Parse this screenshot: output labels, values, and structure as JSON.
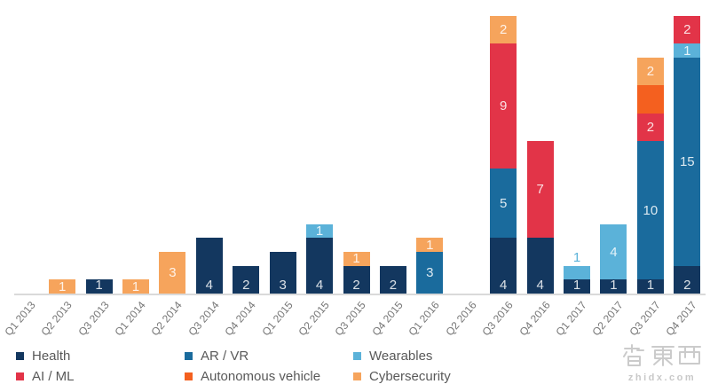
{
  "chart_data": {
    "type": "bar",
    "stacked": true,
    "title": "",
    "xlabel": "",
    "ylabel": "",
    "ylim": [
      0,
      21
    ],
    "grid": false,
    "legend_position": "bottom",
    "categories": [
      "Q1 2013",
      "Q2 2013",
      "Q3 2013",
      "Q1 2014",
      "Q2 2014",
      "Q3 2014",
      "Q4 2014",
      "Q1 2015",
      "Q2 2015",
      "Q3 2015",
      "Q4 2015",
      "Q1 2016",
      "Q2 2016",
      "Q3 2016",
      "Q4 2016",
      "Q1 2017",
      "Q2 2017",
      "Q3 2017",
      "Q4 2017"
    ],
    "series": [
      {
        "name": "Health",
        "color": "#13375F",
        "values": [
          0,
          0,
          1,
          0,
          0,
          4,
          2,
          3,
          4,
          2,
          2,
          0,
          0,
          4,
          4,
          1,
          1,
          1,
          2
        ]
      },
      {
        "name": "AR / VR",
        "color": "#1A6B9D",
        "values": [
          0,
          0,
          0,
          0,
          0,
          0,
          0,
          0,
          0,
          0,
          0,
          3,
          0,
          5,
          0,
          0,
          0,
          10,
          15
        ]
      },
      {
        "name": "Wearables",
        "color": "#5BB2D9",
        "values": [
          0,
          0,
          0,
          0,
          0,
          0,
          0,
          0,
          1,
          0,
          0,
          0,
          0,
          0,
          0,
          1,
          4,
          0,
          1
        ]
      },
      {
        "name": "AI / ML",
        "color": "#E23448",
        "values": [
          0,
          0,
          0,
          0,
          0,
          0,
          0,
          0,
          0,
          0,
          0,
          0,
          0,
          9,
          7,
          0,
          0,
          2,
          2
        ]
      },
      {
        "name": "Autonomous vehicle",
        "color": "#F4601F",
        "values": [
          0,
          0,
          0,
          0,
          0,
          0,
          0,
          0,
          0,
          0,
          0,
          0,
          0,
          0,
          0,
          0,
          0,
          2,
          0
        ]
      },
      {
        "name": "Cybersecurity",
        "color": "#F6A45C",
        "values": [
          0,
          1,
          0,
          1,
          3,
          0,
          0,
          0,
          0,
          1,
          0,
          1,
          0,
          2,
          0,
          0,
          0,
          2,
          0
        ]
      }
    ],
    "hidden_value_labels": [
      {
        "category": "Q3 2017",
        "series": "Autonomous vehicle"
      }
    ],
    "outside_value_labels": [
      {
        "category": "Q1 2017",
        "series": "Wearables"
      }
    ],
    "axis_color": "#dadada",
    "axis_label_color": "#767676",
    "value_label_color": "rgba(255,255,255,0.85)"
  },
  "legend": {
    "items": [
      {
        "label": "Health",
        "color": "#13375F"
      },
      {
        "label": "AR / VR",
        "color": "#1A6B9D"
      },
      {
        "label": "Wearables",
        "color": "#5BB2D9"
      },
      {
        "label": "AI / ML",
        "color": "#E23448"
      },
      {
        "label": "Autonomous vehicle",
        "color": "#F4601F"
      },
      {
        "label": "Cybersecurity",
        "color": "#F6A45C"
      }
    ]
  },
  "watermark": {
    "logo": "智東西",
    "url": "zhidx.com"
  }
}
